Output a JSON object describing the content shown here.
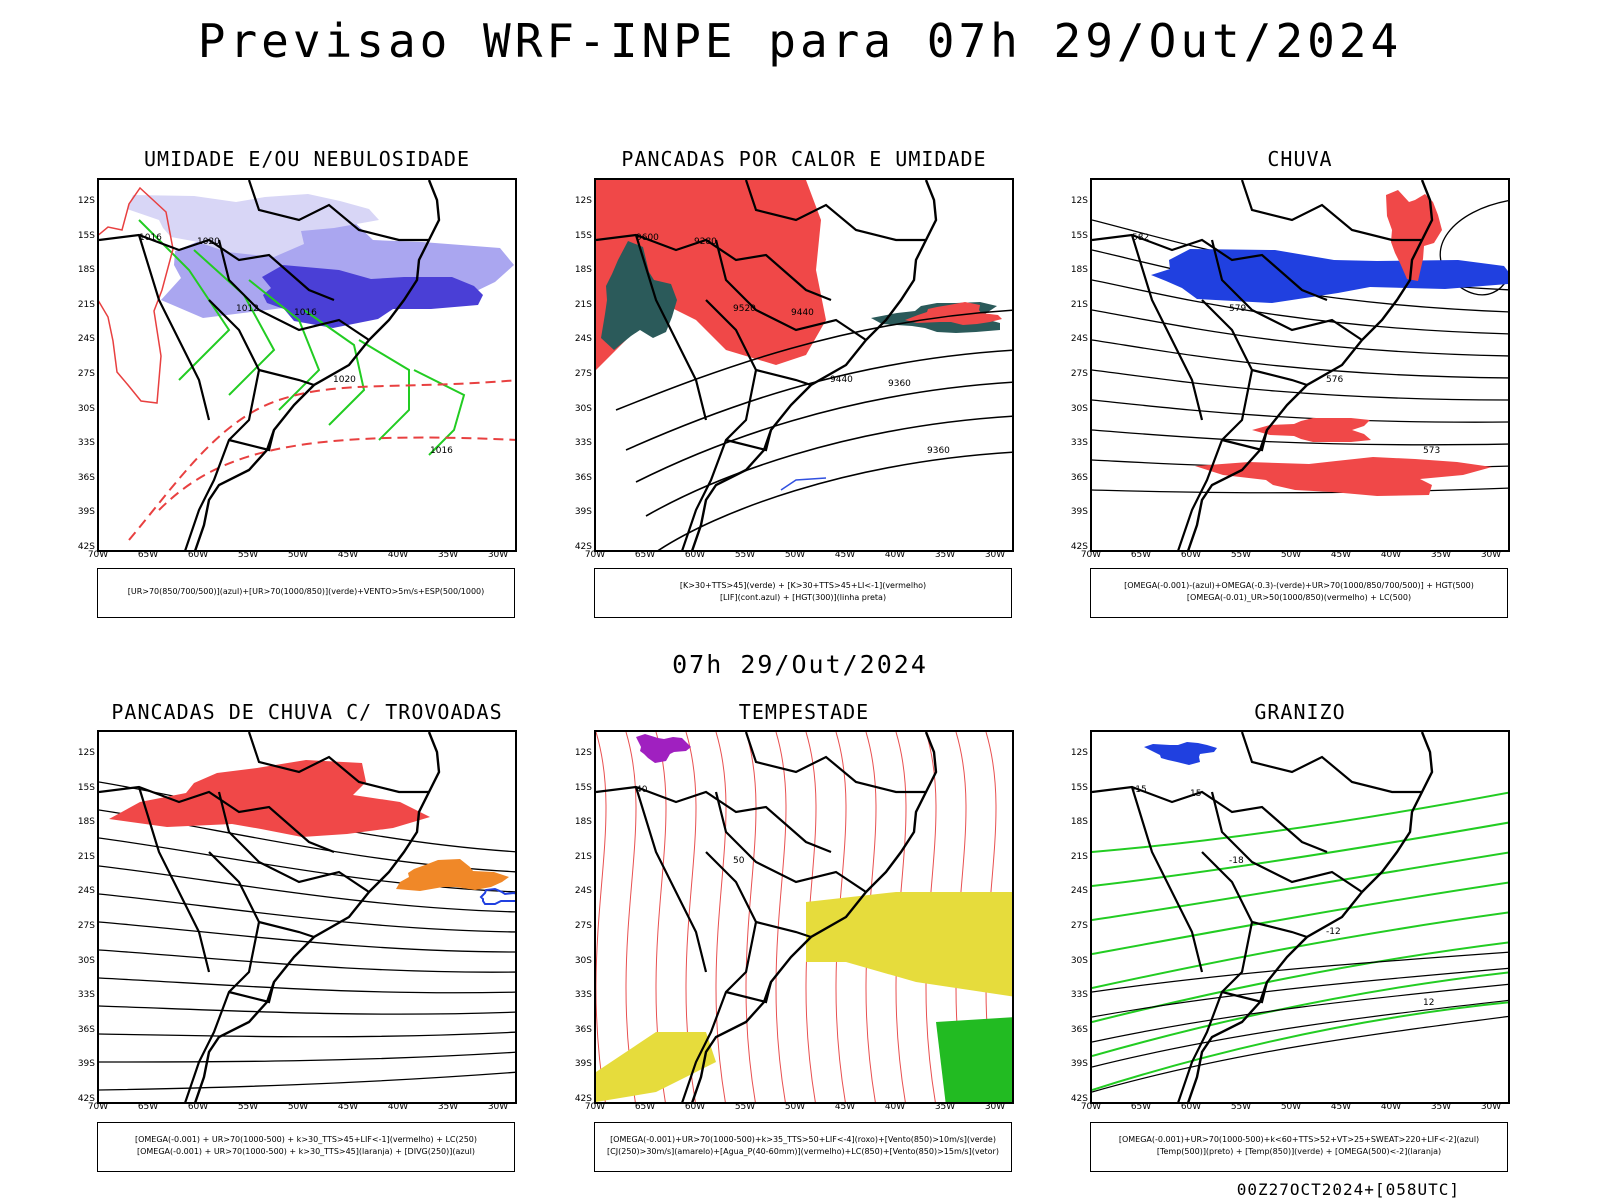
{
  "main_title": "Previsao WRF-INPE  para 07h 29/Out/2024",
  "mid_title": "07h 29/Out/2024",
  "footer": "00Z27OCT2024+[058UTC]",
  "axes": {
    "lat_labels": [
      "12S",
      "15S",
      "18S",
      "21S",
      "24S",
      "27S",
      "30S",
      "33S",
      "36S",
      "39S",
      "42S"
    ],
    "lon_labels": [
      "70W",
      "65W",
      "60W",
      "55W",
      "50W",
      "45W",
      "40W",
      "35W",
      "30W"
    ]
  },
  "panels": [
    {
      "title": "UMIDADE E/OU NEBULOSIDADE",
      "legend": [
        "[UR>70(850/700/500)](azul)+[UR>70(1000/850)](verde)+VENTO>5m/s+ESP(500/1000)"
      ],
      "contour_labels": [
        "1016",
        "1012",
        "1020",
        "1016",
        "1020",
        "1016"
      ]
    },
    {
      "title": "PANCADAS POR CALOR E UMIDADE",
      "legend": [
        "[K>30+TTS>45](verde) + [K>30+TTS>45+LI<-1](vermelho)",
        "[LIF](cont.azul) + [HGT(300)](linha preta)"
      ],
      "contour_labels": [
        "9600",
        "9520",
        "9440",
        "9360",
        "9280",
        "9440",
        "9360"
      ]
    },
    {
      "title": "CHUVA",
      "legend": [
        "[OMEGA(-0.001)-(azul)+OMEGA(-0.3)-(verde)+UR>70(1000/850/700/500)] + HGT(500)",
        "[OMEGA(-0.01)_UR>50(1000/850)(vermelho) + LC(500)"
      ],
      "contour_labels": [
        "582",
        "579",
        "576",
        "573"
      ]
    },
    {
      "title": "PANCADAS DE CHUVA C/ TROVOADAS",
      "legend": [
        "[OMEGA(-0.001) + UR>70(1000-500) + k>30_TTS>45+LIF<-1](vermelho) + LC(250)",
        "[OMEGA(-0.001) + UR>70(1000-500) + k>30_TTS>45](laranja) + [DIVG(250)](azul)"
      ],
      "contour_labels": []
    },
    {
      "title": "TEMPESTADE",
      "legend": [
        "[OMEGA(-0.001)+UR>70(1000-500)+k>35_TTS>50+LIF<-4](roxo)+[Vento(850)>10m/s](verde)",
        "[CJ(250)>30m/s](amarelo)+[Agua_P(40-60mm)](vermelho)+LC(850)+[Vento(850)>15m/s](vetor)"
      ],
      "contour_labels": [
        "40",
        "50"
      ]
    },
    {
      "title": "GRANIZO",
      "legend": [
        "[OMEGA(-0.001)+UR>70(1000-500)+k<60+TTS>52+VT>25+SWEAT>220+LIF<-2](azul)",
        "[Temp(500)](preto) + [Temp(850)](verde) + [OMEGA(500)<-2](laranja)"
      ],
      "contour_labels": [
        "-15",
        "-18",
        "-12",
        "12",
        "15"
      ]
    }
  ]
}
